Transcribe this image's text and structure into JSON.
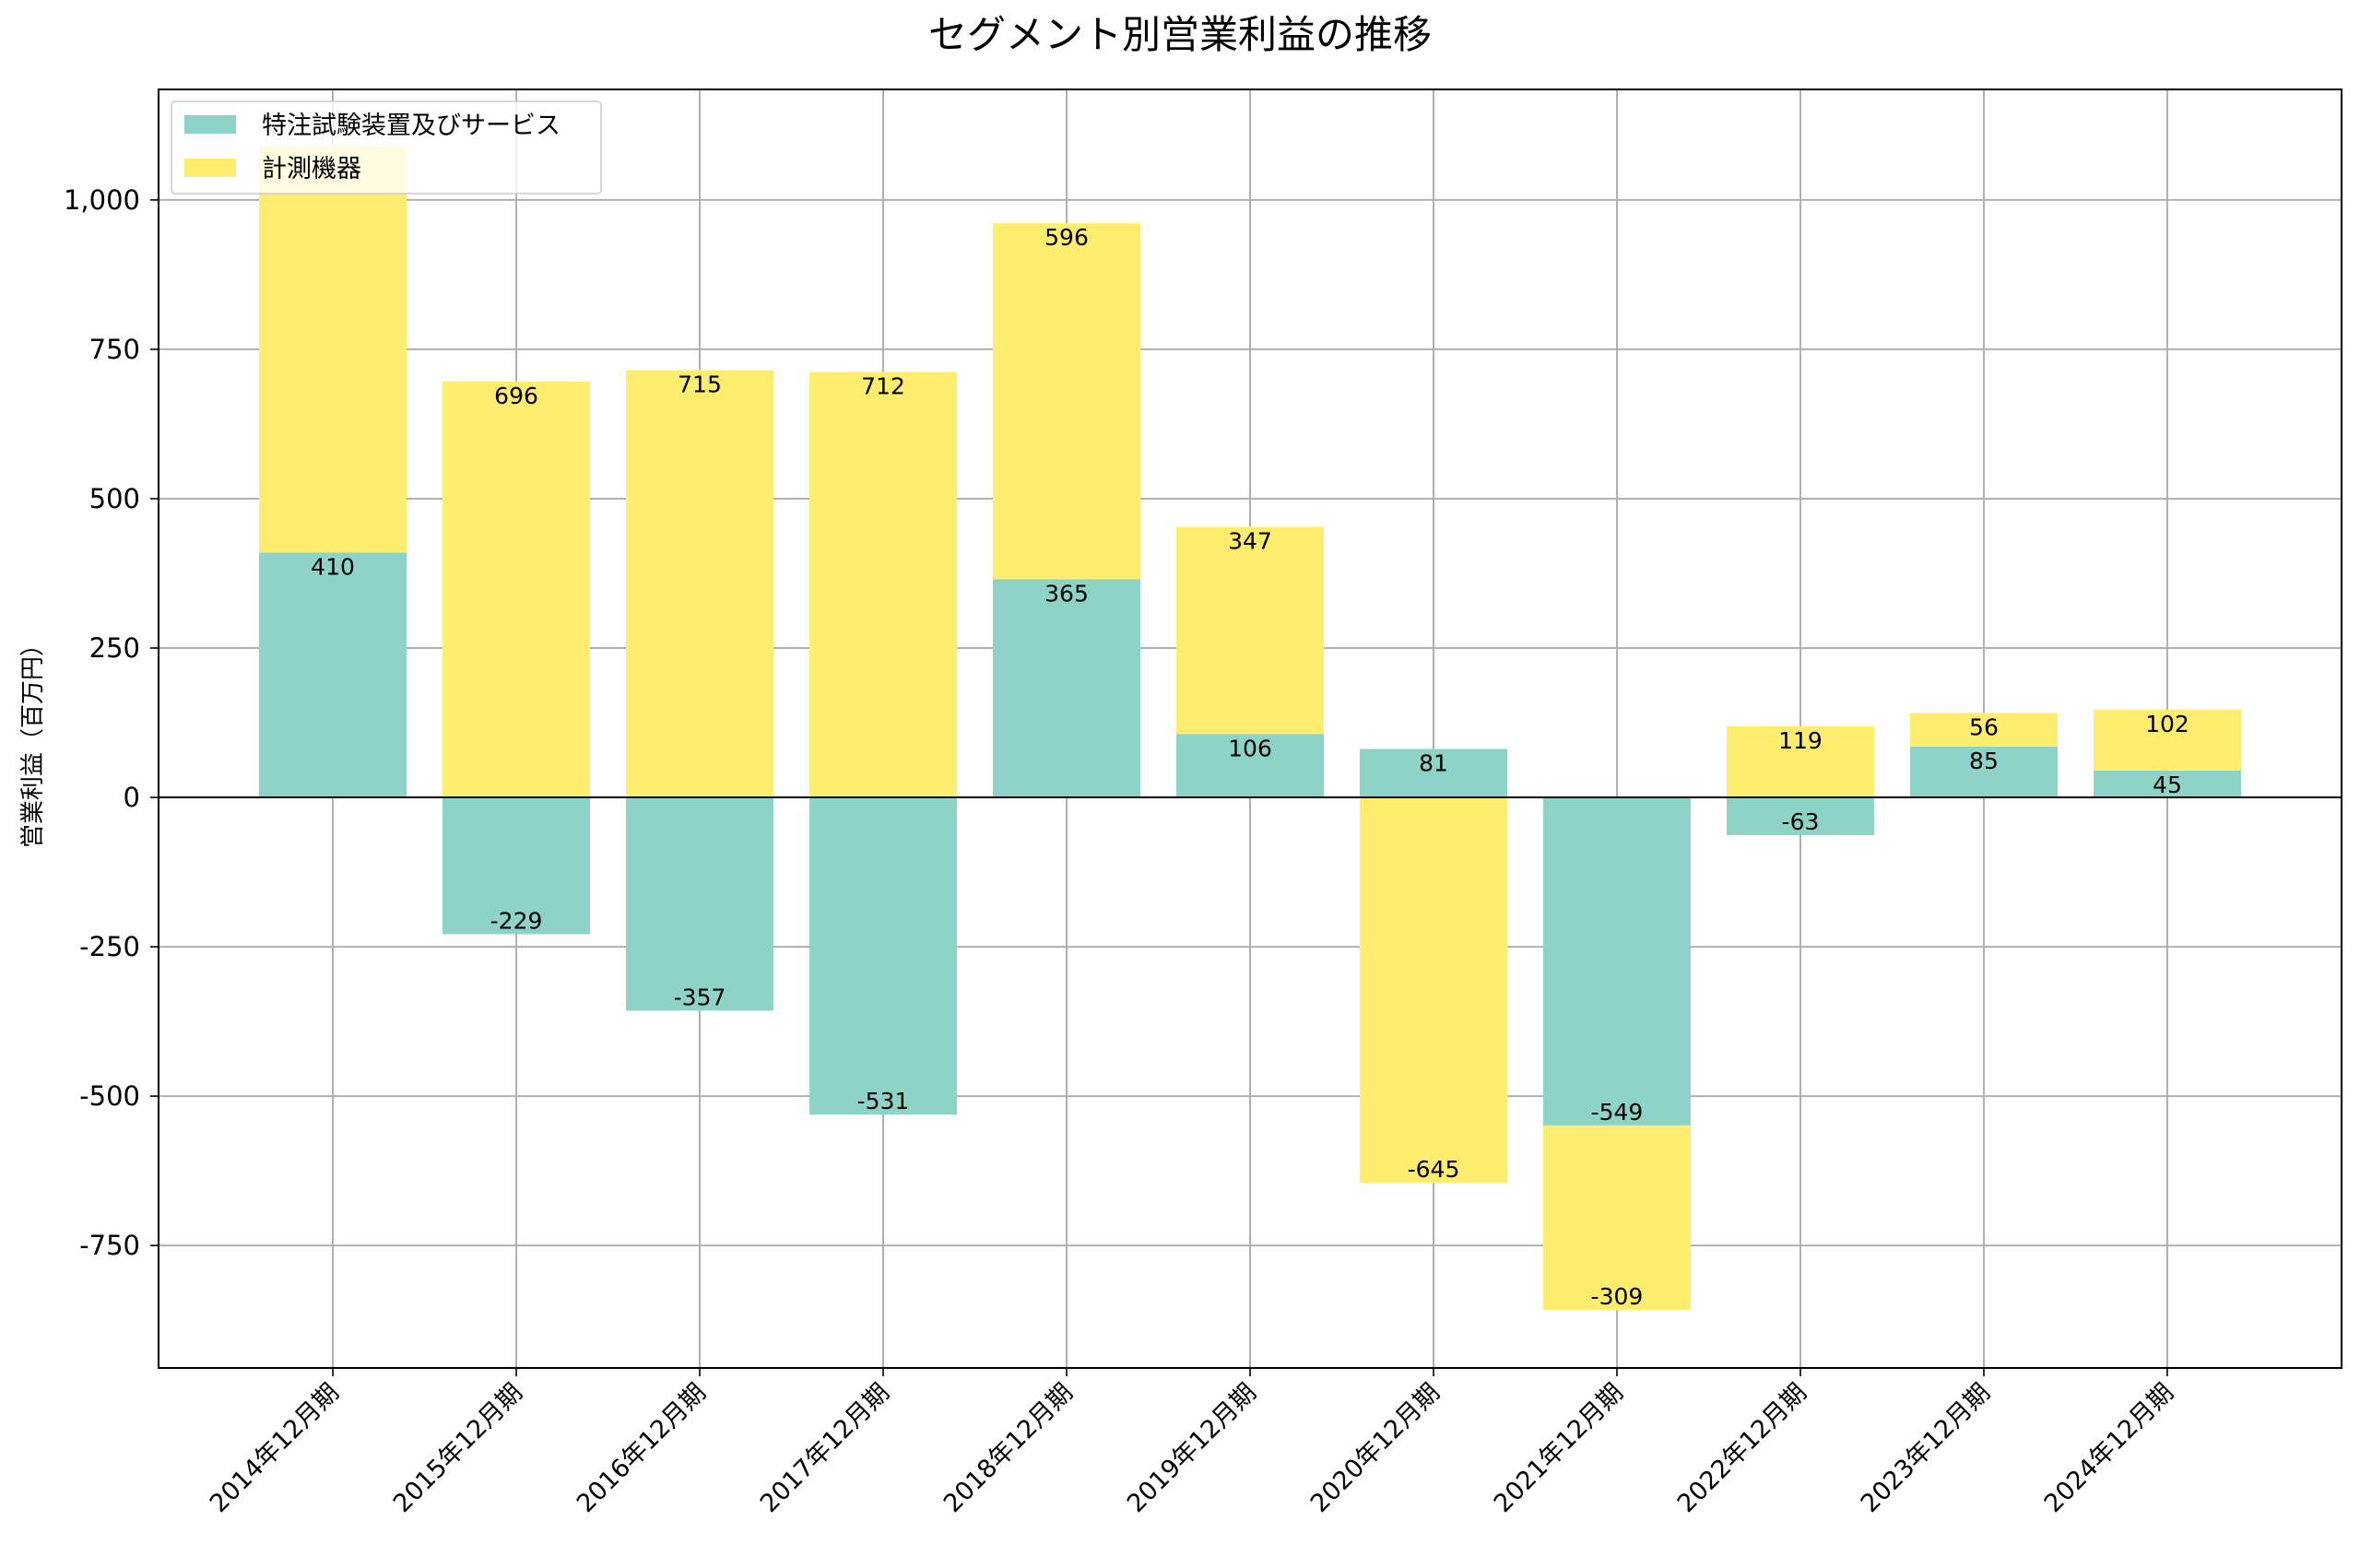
{
  "chart_data": {
    "type": "bar",
    "stacked": true,
    "title": "セグメント別営業利益の推移",
    "xlabel": "",
    "ylabel": "営業利益（百万円）",
    "categories": [
      "2014年12月期",
      "2015年12月期",
      "2016年12月期",
      "2017年12月期",
      "2018年12月期",
      "2019年12月期",
      "2020年12月期",
      "2021年12月期",
      "2022年12月期",
      "2023年12月期",
      "2024年12月期"
    ],
    "series": [
      {
        "name": "特注試験装置及びサービス",
        "color": "#8dd3c7",
        "values": [
          410,
          -229,
          -357,
          -531,
          365,
          106,
          81,
          -549,
          -63,
          85,
          45
        ]
      },
      {
        "name": "計測機器",
        "color": "#ffed6f",
        "values": [
          680,
          696,
          715,
          712,
          596,
          347,
          -645,
          -309,
          119,
          56,
          102
        ]
      }
    ],
    "data_labels": [
      [
        "410",
        "-229",
        "-357",
        "-531",
        "365",
        "106",
        "81",
        "-549",
        "-63",
        "85",
        "45"
      ],
      [
        "",
        "696",
        "715",
        "712",
        "596",
        "347",
        "-645",
        "-309",
        "119",
        "56",
        "102"
      ]
    ],
    "ylim": [
      -955,
      1185
    ],
    "yticks": [
      -750,
      -500,
      -250,
      0,
      250,
      500,
      750,
      1000
    ],
    "ytick_labels": [
      "-750",
      "-500",
      "-250",
      "0",
      "250",
      "500",
      "750",
      "1,000"
    ],
    "grid": true,
    "legend_position": "top-left"
  }
}
